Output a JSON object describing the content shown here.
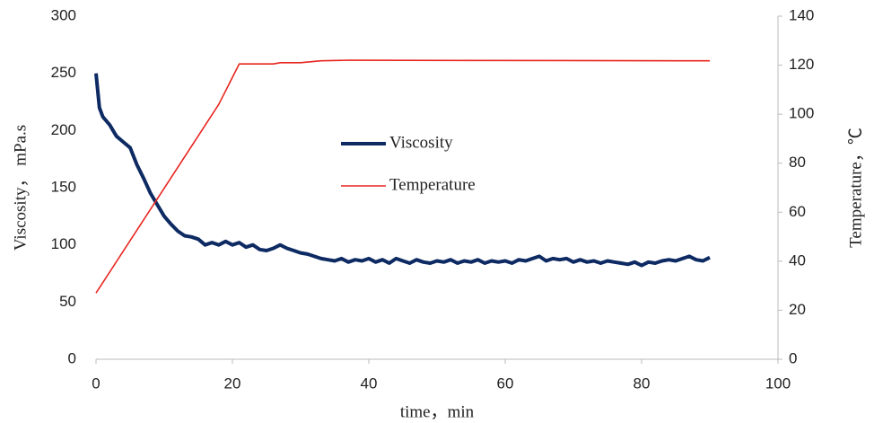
{
  "chart_data": {
    "type": "line",
    "xlabel": "time，min",
    "ylabel": "Viscosity， mPa.s",
    "y2label": "Temperature，℃",
    "xlim": [
      0,
      100
    ],
    "xticks": [
      0,
      20,
      40,
      60,
      80,
      100
    ],
    "ylim": [
      0,
      300
    ],
    "yticks": [
      0,
      50,
      100,
      150,
      200,
      250,
      300
    ],
    "y2lim": [
      0,
      140
    ],
    "y2ticks": [
      0,
      20,
      40,
      60,
      80,
      100,
      120,
      140
    ],
    "grid": false,
    "legend": "center",
    "series": [
      {
        "name": "Viscosity",
        "color": "#0d2a63",
        "x": [
          0,
          0.5,
          1,
          2,
          3,
          4,
          5,
          6,
          7,
          8,
          9,
          10,
          11,
          12,
          13,
          14,
          15,
          16,
          17,
          18,
          19,
          20,
          21,
          22,
          23,
          24,
          25,
          26,
          27,
          28,
          29,
          30,
          31,
          32,
          33,
          34,
          35,
          36,
          37,
          38,
          39,
          40,
          41,
          42,
          43,
          44,
          45,
          46,
          47,
          48,
          49,
          50,
          51,
          52,
          53,
          54,
          55,
          56,
          57,
          58,
          59,
          60,
          61,
          62,
          63,
          64,
          65,
          66,
          67,
          68,
          69,
          70,
          71,
          72,
          73,
          74,
          75,
          76,
          77,
          78,
          79,
          80,
          81,
          82,
          83,
          84,
          85,
          86,
          87,
          88,
          89,
          90
        ],
        "values": [
          250,
          220,
          212,
          205,
          195,
          190,
          185,
          170,
          158,
          145,
          135,
          125,
          118,
          112,
          108,
          107,
          105,
          100,
          102,
          100,
          103,
          100,
          102,
          98,
          100,
          96,
          95,
          97,
          100,
          97,
          95,
          93,
          92,
          90,
          88,
          87,
          86,
          88,
          85,
          87,
          86,
          88,
          85,
          87,
          84,
          88,
          86,
          84,
          87,
          85,
          84,
          86,
          85,
          87,
          84,
          86,
          85,
          87,
          84,
          86,
          85,
          86,
          84,
          87,
          86,
          88,
          90,
          86,
          88,
          87,
          88,
          85,
          87,
          85,
          86,
          84,
          86,
          85,
          84,
          83,
          85,
          82,
          85,
          84,
          86,
          87,
          86,
          88,
          90,
          87,
          86,
          89
        ]
      },
      {
        "name": "Temperature",
        "color": "#e8251f",
        "axis": "y2",
        "x": [
          0,
          18,
          21,
          26,
          27,
          30,
          33,
          37,
          90
        ],
        "values": [
          27,
          104,
          120.5,
          120.5,
          121,
          121,
          121.8,
          122,
          121.8
        ]
      }
    ]
  }
}
